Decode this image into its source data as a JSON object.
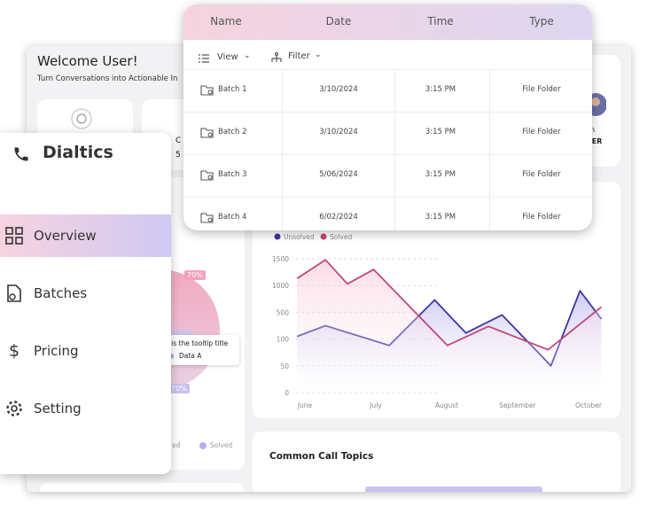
{
  "dashboard": {
    "welcome": "Welcome User!",
    "subtitle": "Turn Conversations into Actionable In",
    "stat_fragments": [
      "C",
      "5"
    ],
    "profile_fragments": [
      "n",
      "YER"
    ],
    "pie": {
      "badge_top": "70%",
      "badge_bottom": "70%",
      "tooltip_title": "his is the tooltip title",
      "tooltip_item": "Data A",
      "legend_left": "ed",
      "legend_right": "Solved"
    },
    "topics_title": "Common Call Topics"
  },
  "sidebar": {
    "brand": "Dialtics",
    "menu": [
      "Overview",
      "Batches",
      "Pricing",
      "Setting"
    ]
  },
  "table": {
    "columns": [
      "Name",
      "Date",
      "Time",
      "Type"
    ],
    "toolbar": [
      "View",
      "Filter"
    ],
    "rows": [
      [
        "Batch 1",
        "3/10/2024",
        "3:15 PM",
        "File Folder"
      ],
      [
        "Batch 2",
        "3/10/2024",
        "3:15 PM",
        "File Folder"
      ],
      [
        "Batch 3",
        "5/06/2024",
        "3:15 PM",
        "File Folder"
      ],
      [
        "Batch 4",
        "6/02/2024",
        "3:15 PM",
        "File Folder"
      ]
    ]
  },
  "chart_data": {
    "type": "line",
    "categories": [
      "June",
      "July",
      "August",
      "September",
      "October"
    ],
    "xlim": [
      -0.11,
      4.18
    ],
    "yticks": [
      0,
      50,
      100,
      500,
      1000,
      1500
    ],
    "ylim": [
      0,
      1500
    ],
    "grid": true,
    "series": [
      {
        "name": "Unsolved",
        "color": "#3b37a6",
        "x": [
          -0.11,
          0.29,
          1.19,
          1.83,
          2.27,
          2.78,
          3.47,
          3.88,
          4.18
        ],
        "values": [
          140,
          300,
          88,
          730,
          190,
          460,
          50,
          900,
          400
        ]
      },
      {
        "name": "Solved",
        "color": "#c2477a",
        "x": [
          -0.11,
          0.29,
          0.6,
          0.97,
          2.01,
          2.59,
          3.43,
          4.18
        ],
        "values": [
          1130,
          1480,
          1030,
          1300,
          88,
          290,
          80,
          600
        ]
      }
    ]
  }
}
